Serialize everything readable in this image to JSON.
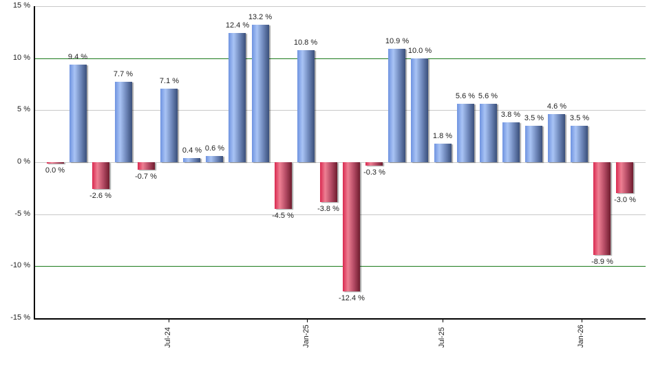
{
  "chart_data": {
    "type": "bar",
    "title": "",
    "xlabel": "",
    "ylabel": "",
    "ylim": [
      -15,
      15
    ],
    "yticks": [
      "15 %",
      "10 %",
      "5 %",
      "0 %",
      "-5 %",
      "-10 %",
      "-15 %"
    ],
    "ytick_values": [
      15,
      10,
      5,
      0,
      -5,
      -10,
      -15
    ],
    "xtick_labels": [
      "Jul-24",
      "Jan-25",
      "Jul-25",
      "Jan-26"
    ],
    "grid": true,
    "highlight_lines": [
      10,
      -10
    ],
    "value_labels": [
      "0.0 %",
      "9.4 %",
      "-2.6 %",
      "7.7 %",
      "-0.7 %",
      "7.1 %",
      "0.4 %",
      "0.6 %",
      "12.4 %",
      "13.2 %",
      "-4.5 %",
      "10.8 %",
      "-3.8 %",
      "-12.4 %",
      "-0.3 %",
      "10.9 %",
      "10.0 %",
      "1.8 %",
      "5.6 %",
      "5.6 %",
      "3.8 %",
      "3.5 %",
      "4.6 %",
      "3.5 %",
      "-8.9 %",
      "-3.0 %"
    ],
    "values": [
      0.0,
      9.4,
      -2.6,
      7.7,
      -0.7,
      7.1,
      0.4,
      0.6,
      12.4,
      13.2,
      -4.5,
      10.8,
      -3.8,
      -12.4,
      -0.3,
      10.9,
      10.0,
      1.8,
      5.6,
      5.6,
      3.8,
      3.5,
      4.6,
      3.5,
      -8.9,
      -3.0
    ],
    "colors": {
      "positive": "#7fa2e6",
      "negative": "#c83a5a",
      "major_grid": "#1a7a1a",
      "grid": "#c8c8c8"
    }
  }
}
